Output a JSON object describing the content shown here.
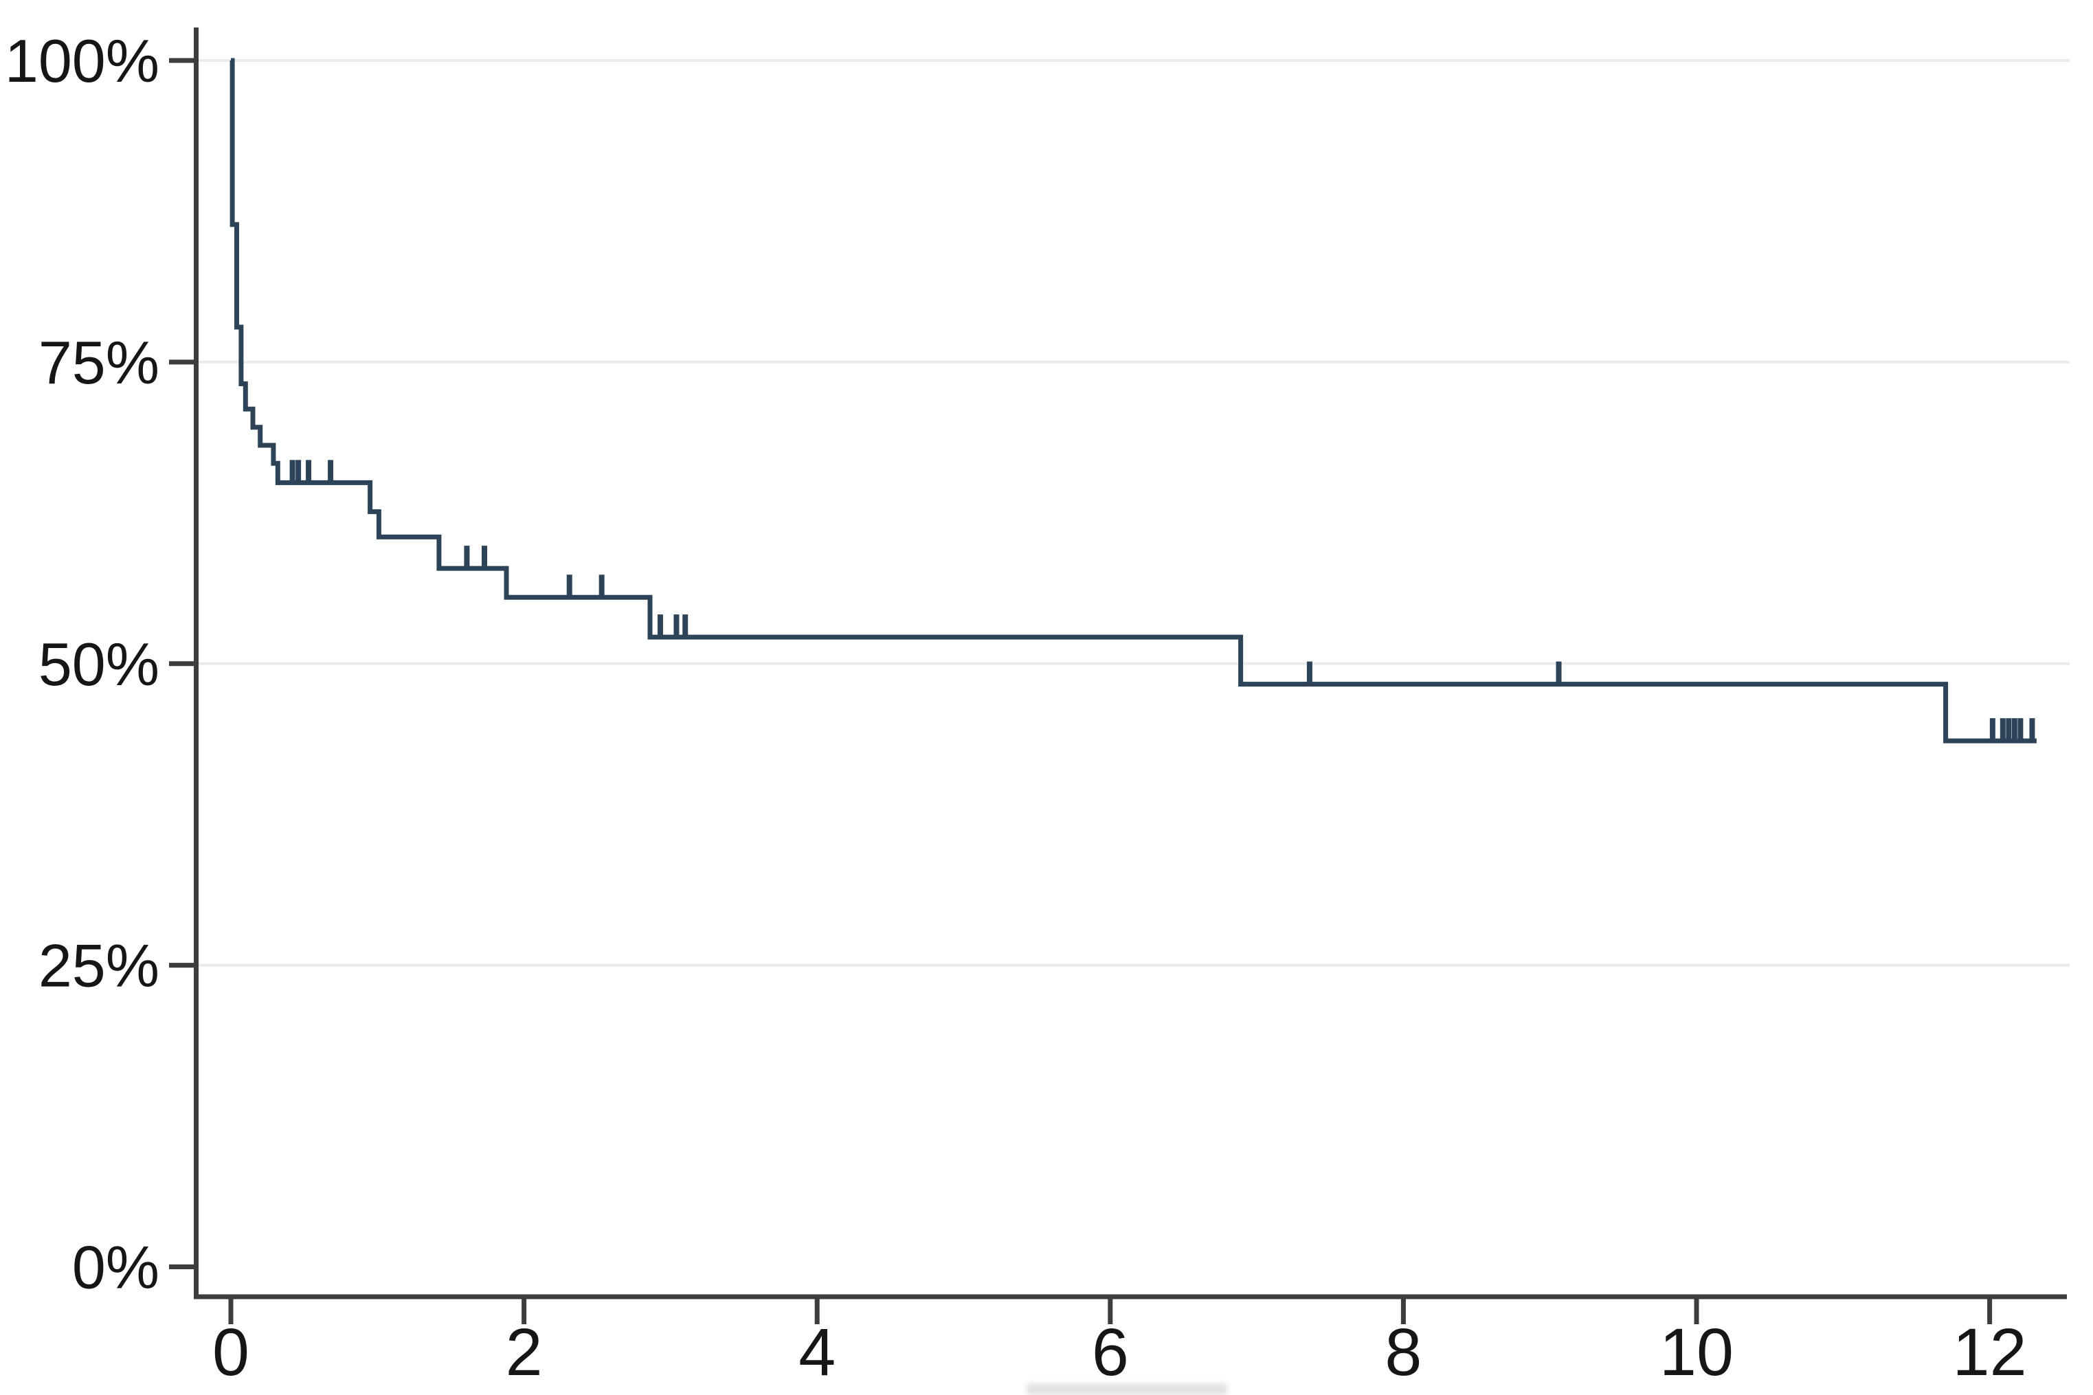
{
  "page": {
    "background": "#ffffff"
  },
  "axes": {
    "y": {
      "tick_labels": [
        "100%",
        "75%",
        "50%",
        "25%",
        "0%"
      ],
      "tick_values": [
        100,
        75,
        50,
        25,
        0
      ],
      "gridline_values": [
        100,
        75,
        50,
        25
      ]
    },
    "x": {
      "tick_labels": [
        "0",
        "2",
        "4",
        "6",
        "8",
        "10",
        "12"
      ],
      "tick_values": [
        0,
        2,
        4,
        6,
        8,
        10,
        12
      ],
      "axis_title_text": "",
      "axis_title_cropped": true
    }
  },
  "chart_data": {
    "type": "line",
    "subtype": "kaplan_meier_survival_step",
    "title": "",
    "xlabel": "",
    "ylabel": "",
    "x_range": [
      0,
      12.5
    ],
    "y_range_percent": [
      0,
      100
    ],
    "grid": "horizontal-only",
    "legend": "none",
    "line_color": "#2d4458",
    "axis_color": "#3d3d3d",
    "gridline_color": "#e8edec",
    "label_color": "#161616",
    "km_steps": [
      {
        "t": 0.0,
        "s": 100.0
      },
      {
        "t": 0.01,
        "s": 86.4
      },
      {
        "t": 0.04,
        "s": 77.9
      },
      {
        "t": 0.07,
        "s": 73.2
      },
      {
        "t": 0.1,
        "s": 71.1
      },
      {
        "t": 0.15,
        "s": 69.6
      },
      {
        "t": 0.2,
        "s": 68.1
      },
      {
        "t": 0.29,
        "s": 66.6
      },
      {
        "t": 0.32,
        "s": 65.0
      },
      {
        "t": 0.95,
        "s": 62.6
      },
      {
        "t": 1.01,
        "s": 60.5
      },
      {
        "t": 1.42,
        "s": 57.9
      },
      {
        "t": 1.88,
        "s": 55.5
      },
      {
        "t": 2.86,
        "s": 52.2
      },
      {
        "t": 6.89,
        "s": 48.3
      },
      {
        "t": 11.7,
        "s": 43.6
      }
    ],
    "curve_end_time": 12.32,
    "censor_marks": [
      {
        "t": 0.42,
        "s": 65.0
      },
      {
        "t": 0.46,
        "s": 65.0
      },
      {
        "t": 0.53,
        "s": 65.0
      },
      {
        "t": 0.68,
        "s": 65.0
      },
      {
        "t": 1.61,
        "s": 57.9
      },
      {
        "t": 1.73,
        "s": 57.9
      },
      {
        "t": 2.31,
        "s": 55.5
      },
      {
        "t": 2.53,
        "s": 55.5
      },
      {
        "t": 2.93,
        "s": 52.2
      },
      {
        "t": 3.04,
        "s": 52.2
      },
      {
        "t": 3.1,
        "s": 52.2
      },
      {
        "t": 7.36,
        "s": 48.3
      },
      {
        "t": 9.06,
        "s": 48.3
      },
      {
        "t": 12.02,
        "s": 43.6
      },
      {
        "t": 12.09,
        "s": 43.6
      },
      {
        "t": 12.13,
        "s": 43.6
      },
      {
        "t": 12.17,
        "s": 43.6
      },
      {
        "t": 12.21,
        "s": 43.6
      },
      {
        "t": 12.29,
        "s": 43.6
      }
    ]
  }
}
